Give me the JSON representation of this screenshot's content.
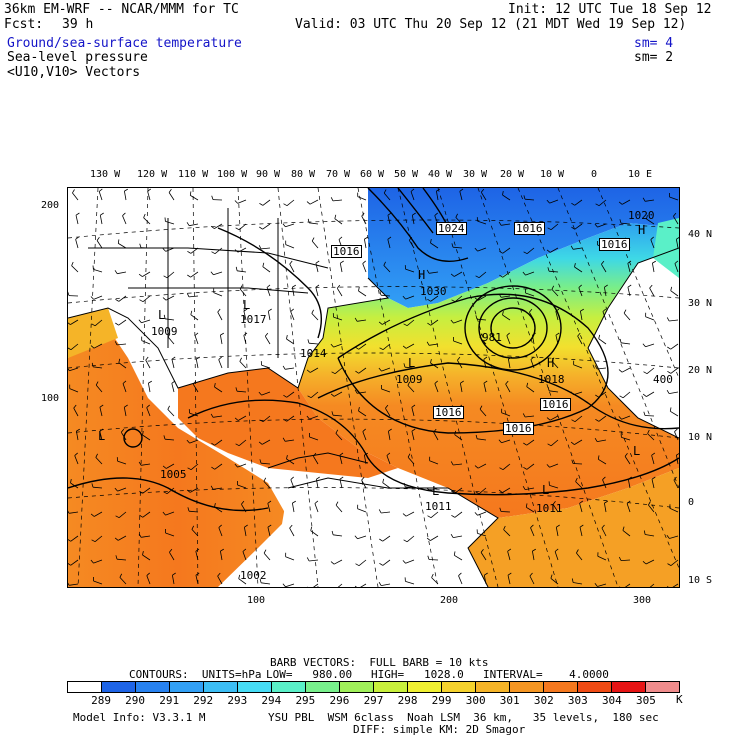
{
  "header": {
    "model": "36km EM-WRF -- NCAR/MMM for TC",
    "init": "Init: 12 UTC Tue 18 Sep 12",
    "fcst_label": "Fcst:",
    "fcst_value": "39 h",
    "valid": "Valid: 03 UTC Thu 20 Sep 12 (21 MDT Wed 19 Sep 12)"
  },
  "fields": [
    {
      "label": "Ground/sea-surface temperature",
      "sm": "sm= 4",
      "color": "#1414c8"
    },
    {
      "label": "Sea-level pressure",
      "sm": "sm= 2",
      "color": "#000000"
    },
    {
      "label": "<U10,V10> Vectors",
      "sm": "",
      "color": "#000000"
    }
  ],
  "top_lon_labels": [
    "130 W",
    "120 W",
    "110 W",
    "100 W",
    "90 W",
    "80 W",
    "70 W",
    "60 W",
    "50 W",
    "40 W",
    "30 W",
    "20 W",
    "10 W",
    "0",
    "10 E"
  ],
  "right_lat_labels": [
    "40 N",
    "30 N",
    "20 N",
    "10 N",
    "0",
    "10 S"
  ],
  "left_grid_labels": [
    "200",
    "100"
  ],
  "bottom_grid_labels": [
    "100",
    "200",
    "300"
  ],
  "pressure_labels": [
    {
      "text": "1024",
      "boxed": true
    },
    {
      "text": "1016",
      "boxed": true
    },
    {
      "text": "1016",
      "boxed": true
    },
    {
      "text": "1016",
      "boxed": true
    },
    {
      "text": "1016",
      "boxed": true
    },
    {
      "text": "1016",
      "boxed": true
    },
    {
      "text": "1009",
      "boxed": false
    },
    {
      "text": "1009",
      "boxed": false
    },
    {
      "text": "1005",
      "boxed": false
    },
    {
      "text": "1014",
      "boxed": false
    },
    {
      "text": "1018",
      "boxed": false
    },
    {
      "text": "1011",
      "boxed": false
    },
    {
      "text": "1011",
      "boxed": false
    },
    {
      "text": "1017",
      "boxed": false
    },
    {
      "text": "1020",
      "boxed": false
    },
    {
      "text": "1030",
      "boxed": false
    },
    {
      "text": "981",
      "boxed": false
    },
    {
      "text": "400",
      "boxed": false
    },
    {
      "text": "1002",
      "boxed": false
    },
    {
      "text": "1016",
      "boxed": false
    }
  ],
  "pressure_centers": [
    "H",
    "H",
    "L",
    "L",
    "L",
    "L",
    "L",
    "L",
    "L",
    "H"
  ],
  "barb_info": "BARB VECTORS:  FULL BARB = 10 kts",
  "contours_info": {
    "label": "CONTOURS:  UNITS=hPa",
    "low": "LOW=   980.00",
    "high": "HIGH=   1028.0",
    "interval": "INTERVAL=    4.0000"
  },
  "colorbar": {
    "values": [
      "289",
      "290",
      "291",
      "292",
      "293",
      "294",
      "295",
      "296",
      "297",
      "298",
      "299",
      "300",
      "301",
      "302",
      "303",
      "304",
      "305"
    ],
    "unit": "K",
    "colors": [
      "#ffffff",
      "#1e64e6",
      "#2882f0",
      "#32a0f5",
      "#3cbef5",
      "#46dcf5",
      "#5af0c8",
      "#78f08c",
      "#a0f05a",
      "#c8f03c",
      "#f0f032",
      "#f5d22d",
      "#f5b428",
      "#f59623",
      "#f5781e",
      "#f04b14",
      "#e61414",
      "#f08c8c"
    ]
  },
  "footer": {
    "model_info": "Model Info: V3.3.1 M",
    "physics": "YSU PBL  WSM 6class  Noah LSM  36 km,   35 levels,  180 sec",
    "diffusion": "DIFF: simple KM: 2D Smagor"
  }
}
